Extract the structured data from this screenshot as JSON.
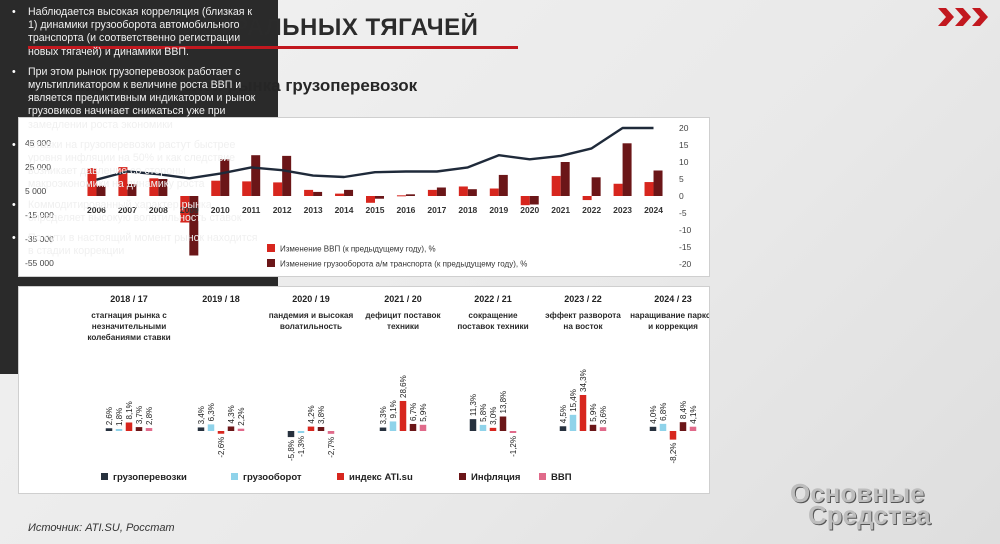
{
  "header": {
    "title": "РЫНОК МАГИСТРАЛЬНЫХ ТЯГАЧЕЙ",
    "subtitle": "Динамика показателей рынка грузоперевозок"
  },
  "source": "Источник: ATI.SU, Росстат",
  "watermark": {
    "line1": "Основные",
    "line2": "Средства"
  },
  "colors": {
    "accent": "#c2181f",
    "dark_red": "#6b1618",
    "gdp_red": "#d7261e",
    "line": "#1f2a3a",
    "light_blue": "#8fd3ea",
    "pink": "#e06a8a",
    "navy": "#27313e"
  },
  "right_panel": {
    "bullets": [
      "Наблюдается высокая корреляция (близкая к 1) динамики грузооборота автомобильного транспорта (и соответственно регистрации новых тягачей) и динамики ВВП.",
      "При этом рынок грузоперевозок работает с мультипликатором к величине роста ВВП и является предиктивным индикатором и рынок грузовиков начинает снижаться уже при замедлении роста экономики",
      "Ставки на грузоперевозки растут быстрее уровня инфляции на 50% и как следствие возникает давление со стороны макроэкономики на динамику роста",
      "Коммодитированный характер рынка определяет высокую волатильность ставок",
      "По сути в настоящий момент рынок находится в стадии коррекции"
    ]
  },
  "chart_data": [
    {
      "type": "bar",
      "categories": [
        "2006",
        "2007",
        "2008",
        "2009",
        "2010",
        "2011",
        "2012",
        "2013",
        "2014",
        "2015",
        "2016",
        "2017",
        "2018",
        "2019",
        "2020",
        "2021",
        "2022",
        "2023",
        "2024"
      ],
      "left_axis": {
        "ticks": [
          "45 000",
          "25 000",
          "5 000",
          "-15 000",
          "-35 000",
          "-55 000"
        ],
        "ylim": [
          -55000,
          45000
        ]
      },
      "right_axis": {
        "ticks": [
          "20",
          "15",
          "10",
          "5",
          "0",
          "-5",
          "-10",
          "-15",
          "-20"
        ],
        "ylim": [
          -20,
          20
        ]
      },
      "series": [
        {
          "name": "Изменение ВВП (к предыдущему году), %",
          "axis": "right",
          "color": "#d7261e",
          "values": [
            8.2,
            8.5,
            5.2,
            -7.8,
            4.5,
            4.3,
            4.0,
            1.8,
            0.7,
            -2.0,
            0.2,
            1.8,
            2.8,
            2.2,
            -2.7,
            5.9,
            -1.2,
            3.6,
            4.1
          ]
        },
        {
          "name": "Изменение грузооборота а/м транспорта (к предыдущему году), %",
          "axis": "right",
          "color": "#6b1618",
          "values": [
            3.0,
            3.5,
            5.0,
            -17.5,
            10.8,
            12.0,
            11.8,
            1.2,
            1.8,
            -0.8,
            0.5,
            2.5,
            2.0,
            6.2,
            -2.5,
            10.0,
            5.5,
            15.5,
            7.5
          ]
        },
        {
          "name": "line",
          "axis": "left",
          "color": "#1f2a3a",
          "values": [
            7000,
            13000,
            11000,
            8000,
            11500,
            16000,
            14000,
            10000,
            9000,
            12500,
            13000,
            13000,
            16000,
            25000,
            22000,
            24500,
            30000,
            50000,
            45000
          ]
        }
      ]
    },
    {
      "type": "bar",
      "categories": [
        "2018 / 17",
        "2019 / 18",
        "2020 / 19",
        "2021 / 20",
        "2022 / 21",
        "2023 / 22",
        "2024 / 23"
      ],
      "captions": [
        "стагнация рынка с незначительными колебаниями ставки",
        "",
        "пандемия и высокая волатильность",
        "дефицит поставок техники",
        "сокращение поставок техники",
        "эффект разворота на восток",
        "наращивание парков и коррекция"
      ],
      "series": [
        {
          "name": "грузоперевозки",
          "color": "#27313e",
          "values": [
            2.6,
            3.4,
            -5.8,
            3.3,
            11.3,
            4.5,
            4.0
          ]
        },
        {
          "name": "грузооборот",
          "color": "#8fd3ea",
          "values": [
            1.8,
            6.3,
            -1.3,
            9.1,
            5.8,
            15.4,
            6.8
          ]
        },
        {
          "name": "индекс ATI.su",
          "color": "#d7261e",
          "values": [
            8.1,
            -2.6,
            4.2,
            28.6,
            3.0,
            34.3,
            -8.2
          ]
        },
        {
          "name": "Инфляция",
          "color": "#6b1618",
          "values": [
            3.7,
            4.3,
            3.8,
            6.7,
            13.8,
            5.9,
            8.4
          ]
        },
        {
          "name": "ВВП",
          "color": "#e06a8a",
          "values": [
            2.8,
            2.2,
            -2.7,
            5.9,
            -1.2,
            3.6,
            4.1
          ]
        }
      ],
      "labels": [
        [
          "2,6%",
          "1,8%",
          "8,1%",
          "3,7%",
          "2,8%"
        ],
        [
          "3,4%",
          "6,3%",
          "-2,6%",
          "4,3%",
          "2,2%"
        ],
        [
          "-5,8%",
          "-1,3%",
          "4,2%",
          "3,8%",
          "-2,7%"
        ],
        [
          "3,3%",
          "9,1%",
          "28,6%",
          "6,7%",
          "5,9%"
        ],
        [
          "11,3%",
          "5,8%",
          "3,0%",
          "13,8%",
          "-1,2%"
        ],
        [
          "4,5%",
          "15,4%",
          "34,3%",
          "5,9%",
          "3,6%"
        ],
        [
          "4,0%",
          "6,8%",
          "-8,2%",
          "8,4%",
          "4,1%"
        ]
      ]
    }
  ]
}
